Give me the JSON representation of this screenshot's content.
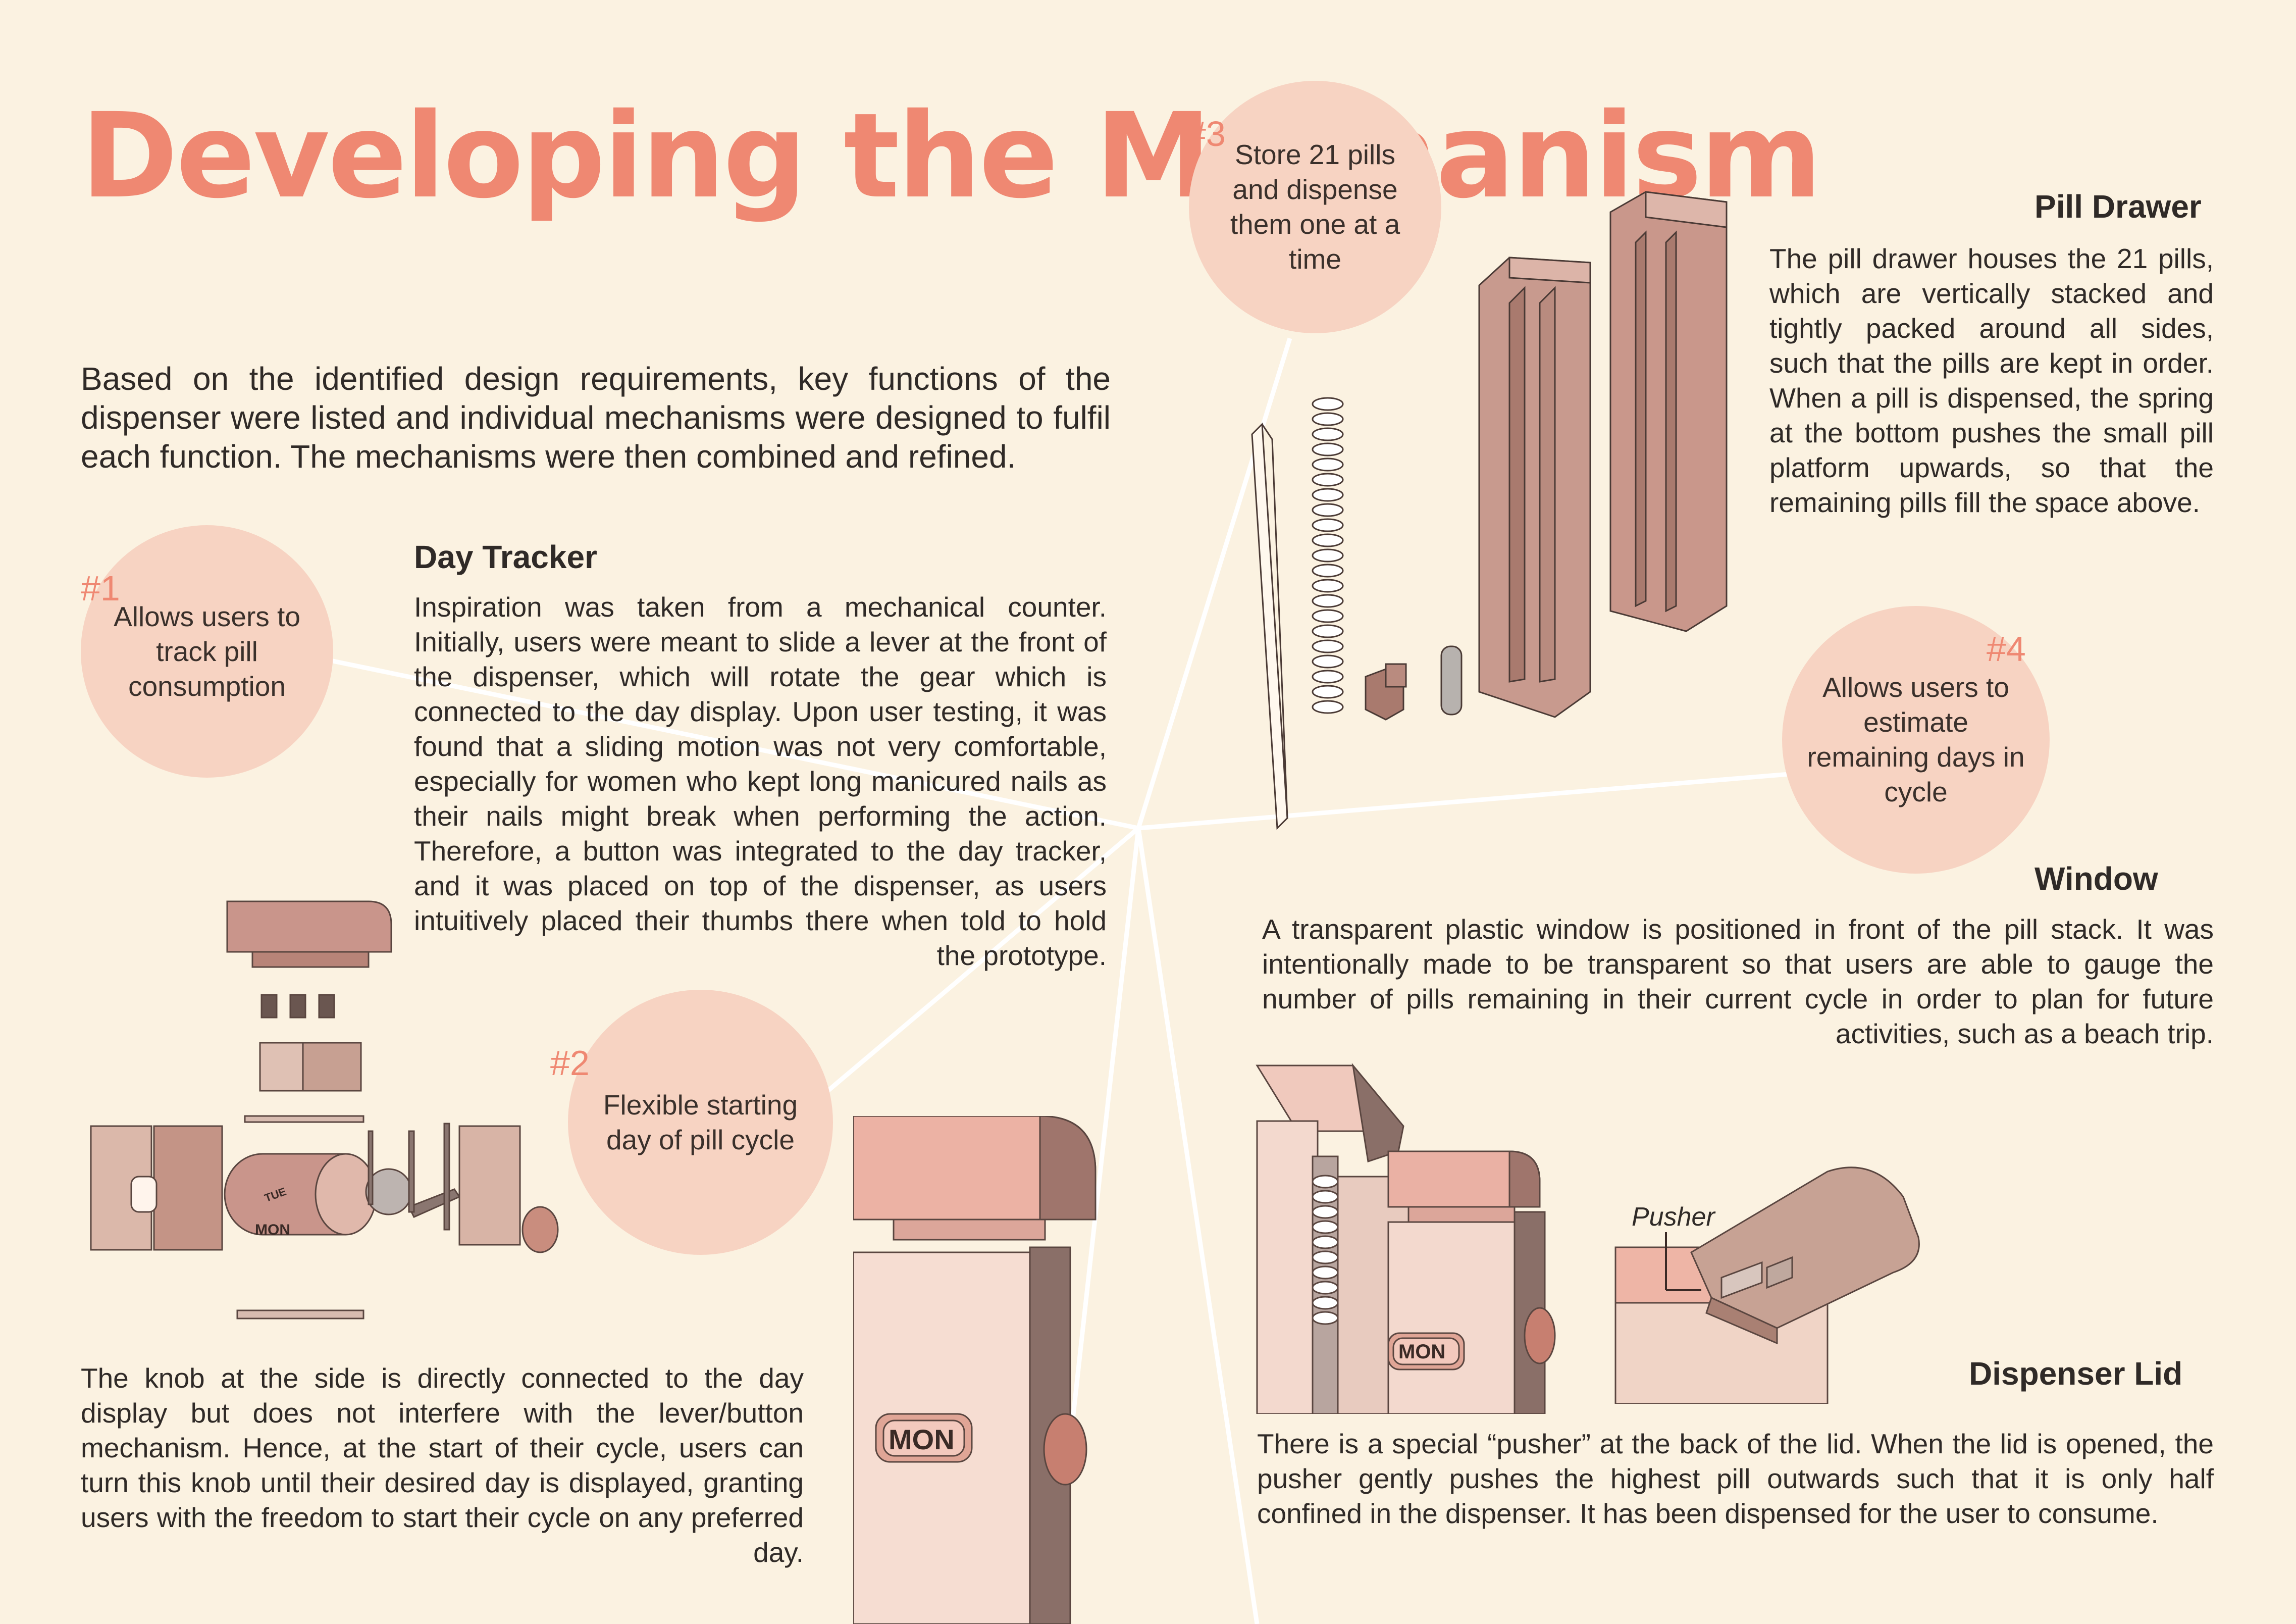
{
  "title": "Developing the Mechanism",
  "intro": "Based on the identified design requirements, key functions of the dispenser were listed and individual mechanisms were designed to fulfil each function. The mechanisms were then combined and refined.",
  "functions": [
    {
      "number": "#1",
      "text": "Allows users to track pill consumption"
    },
    {
      "number": "#2",
      "text": "Flexible starting day of pill cycle"
    },
    {
      "number": "#3",
      "text": "Store 21 pills and dispense them one at a time"
    },
    {
      "number": "#4",
      "text": "Allows users to estimate remaining days in cycle"
    }
  ],
  "sections": {
    "day_tracker": {
      "heading": "Day Tracker",
      "body": "Inspiration was taken from a mechanical counter. Initially, users were meant to slide a lever at the front of the dispenser, which will rotate the gear which is connected to the day display. Upon user testing, it was found that a sliding motion was not very comfortable, especially for women who kept long manicured nails as their nails might break when performing the action. Therefore, a button was integrated to the day tracker, and it was placed on top of the dispenser, as users intuitively placed their thumbs there when told to hold the prototype."
    },
    "knob": {
      "body": "The knob at the side is directly connected to the day display but does not interfere with the lever/button mechanism. Hence, at the start of their cycle, users can turn this knob until their desired day is displayed, granting users with the freedom to start their cycle on any preferred day."
    },
    "pill_drawer": {
      "heading": "Pill Drawer",
      "body": "The pill drawer houses the 21 pills, which are vertically stacked and tightly packed around all sides, such that the pills are kept in order. When a pill is dispensed, the spring at the bottom pushes the small pill platform upwards, so that the remaining pills fill the space above."
    },
    "window": {
      "heading": "Window",
      "body": "A transparent plastic window is positioned in front of the pill stack. It was intentionally made to be transparent so that users are able to gauge the number of pills remaining in their current cycle in order to plan for future activities, such as a beach trip."
    },
    "dispenser_lid": {
      "heading": "Dispenser Lid",
      "body": "There is a special “pusher” at the back of the lid. When the lid is opened, the pusher gently pushes the highest pill outwards such that it is only half confined in the dispenser. It has been dispensed for the user to consume."
    }
  },
  "image_labels": {
    "day_tue": "TUE",
    "day_mon": "MON",
    "pusher": "Pusher"
  },
  "colors": {
    "background": "#fbf2e1",
    "accent": "#ef8872",
    "bubble": "#f7d3c2",
    "text": "#2f2a27"
  }
}
